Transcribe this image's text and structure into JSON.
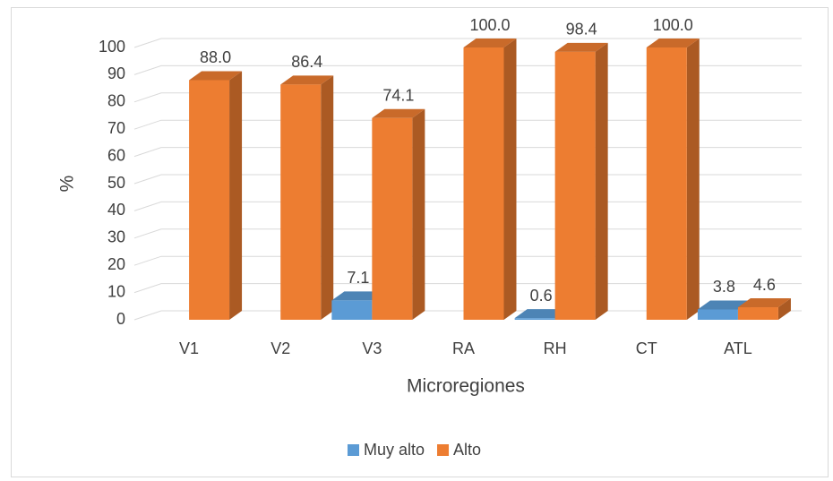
{
  "chart_data": {
    "type": "bar3d",
    "x_label": "Microregiones",
    "y_label": "%",
    "categories": [
      "V1",
      "V2",
      "V3",
      "RA",
      "RH",
      "CT",
      "ATL"
    ],
    "series": [
      {
        "name": "Muy alto",
        "color": "#5b9bd5",
        "values": [
          null,
          null,
          7.1,
          null,
          0.6,
          null,
          3.8
        ]
      },
      {
        "name": "Alto",
        "color": "#ed7d31",
        "values": [
          88.0,
          86.4,
          74.1,
          100.0,
          98.4,
          100.0,
          4.6
        ],
        "value_labels": [
          "88.0",
          "86.4",
          "74.1",
          "100.0",
          "98.4",
          "100.0",
          "4.6"
        ]
      }
    ],
    "ylim": [
      0,
      100
    ],
    "yticks": [
      0,
      10,
      20,
      30,
      40,
      50,
      60,
      70,
      80,
      90,
      100
    ],
    "grid": true,
    "legend": "bottom"
  }
}
